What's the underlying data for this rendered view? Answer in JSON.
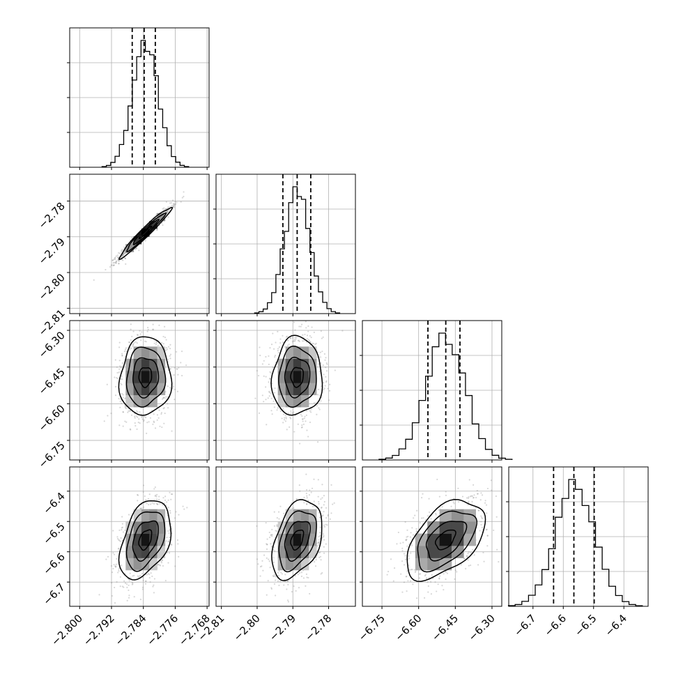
{
  "colors": {
    "ink": "#000000",
    "grid": "#b0b0b0",
    "background": "#ffffff"
  },
  "chart_data": {
    "type": "corner",
    "title": "",
    "parameters": [
      {
        "label": "",
        "range": [
          -2.8025,
          -2.7675
        ],
        "ticks": [
          -2.8,
          -2.792,
          -2.784,
          -2.776,
          -2.768
        ],
        "tick_labels": [
          "−2.800",
          "−2.792",
          "−2.784",
          "−2.776",
          "−2.768"
        ],
        "mean": -2.7835,
        "sd": 0.0032,
        "quantiles": [
          -2.7868,
          -2.7838,
          -2.781
        ]
      },
      {
        "label": "",
        "range": [
          -2.8115,
          -2.7725
        ],
        "ticks": [
          -2.81,
          -2.8,
          -2.79,
          -2.78
        ],
        "tick_labels": [
          "−2.81",
          "−2.80",
          "−2.79",
          "−2.78"
        ],
        "mean": -2.7888,
        "sd": 0.0035,
        "quantiles": [
          -2.7928,
          -2.7888,
          -2.785
        ]
      },
      {
        "label": "",
        "range": [
          -6.83,
          -6.26
        ],
        "ticks": [
          -6.75,
          -6.6,
          -6.45,
          -6.3
        ],
        "tick_labels": [
          "−6.75",
          "−6.60",
          "−6.45",
          "−6.30"
        ],
        "mean": -6.49,
        "sd": 0.08,
        "quantiles": [
          -6.562,
          -6.489,
          -6.431
        ]
      },
      {
        "label": "",
        "range": [
          -6.78,
          -6.32
        ],
        "ticks": [
          -6.7,
          -6.6,
          -6.5,
          -6.4
        ],
        "tick_labels": [
          "−6.7",
          "−6.6",
          "−6.5",
          "−6.4"
        ],
        "mean": -6.56,
        "sd": 0.065,
        "quantiles": [
          -6.632,
          -6.565,
          -6.498
        ]
      }
    ],
    "correlations": [
      [
        1.0,
        0.97,
        0.05,
        0.4
      ],
      [
        0.97,
        1.0,
        0.05,
        0.4
      ],
      [
        0.05,
        0.05,
        1.0,
        0.5
      ],
      [
        0.4,
        0.4,
        0.5,
        1.0
      ]
    ],
    "histogram_bins": 20,
    "contour_levels": 4,
    "quantile_lines": "dashed",
    "grid": true,
    "xlabel": "",
    "ylabel": ""
  }
}
